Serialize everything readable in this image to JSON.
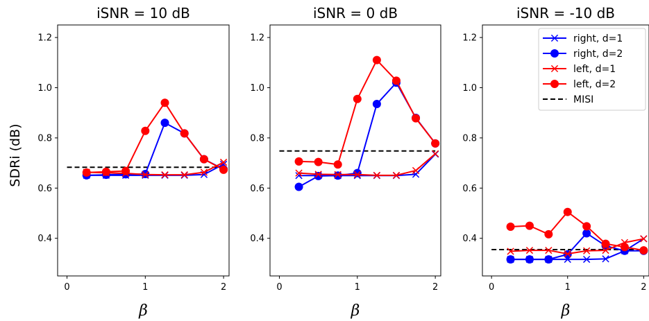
{
  "figure": {
    "ylabel": "SDRi (dB)"
  },
  "chart_data": [
    {
      "type": "line",
      "title": "iSNR = 10 dB",
      "xlabel": "β",
      "ylabel": "SDRi (dB)",
      "xlim": [
        -0.12,
        2.07
      ],
      "ylim": [
        0.25,
        1.25
      ],
      "xticks": [
        0,
        1,
        2
      ],
      "yticks": [
        0.4,
        0.6,
        0.8,
        1.0,
        1.2
      ],
      "ytick_labels": [
        "0.4",
        "0.6",
        "0.8",
        "1.0",
        "1.2"
      ],
      "x": [
        0.25,
        0.5,
        0.75,
        1.0,
        1.25,
        1.5,
        1.75,
        2.0
      ],
      "series": [
        {
          "name": "right, d=1",
          "color": "#0000ff",
          "marker": "x",
          "values": [
            0.651,
            0.651,
            0.651,
            0.651,
            0.651,
            0.651,
            0.654,
            0.695
          ]
        },
        {
          "name": "right, d=2",
          "color": "#0000ff",
          "marker": "o",
          "values": [
            0.651,
            0.653,
            0.655,
            0.656,
            0.86,
            0.818,
            0.715,
            0.675
          ]
        },
        {
          "name": "left, d=1",
          "color": "#ff0000",
          "marker": "x",
          "values": [
            0.663,
            0.661,
            0.659,
            0.654,
            0.653,
            0.653,
            0.663,
            0.703
          ]
        },
        {
          "name": "left, d=2",
          "color": "#ff0000",
          "marker": "o",
          "values": [
            0.662,
            0.665,
            0.668,
            0.828,
            0.94,
            0.818,
            0.715,
            0.673
          ]
        }
      ],
      "baseline": {
        "name": "MISI",
        "value": 0.683,
        "x_range": [
          0.0,
          2.0
        ]
      },
      "legend": null
    },
    {
      "type": "line",
      "title": "iSNR = 0 dB",
      "xlabel": "β",
      "xlim": [
        -0.12,
        2.07
      ],
      "ylim": [
        0.25,
        1.25
      ],
      "xticks": [
        0,
        1,
        2
      ],
      "yticks": [
        0.4,
        0.6,
        0.8,
        1.0,
        1.2
      ],
      "ytick_labels": [
        "0.4",
        "0.6",
        "0.8",
        "1.0",
        "1.2"
      ],
      "x": [
        0.25,
        0.5,
        0.75,
        1.0,
        1.25,
        1.5,
        1.75,
        2.0
      ],
      "series": [
        {
          "name": "right, d=1",
          "color": "#0000ff",
          "marker": "x",
          "values": [
            0.65,
            0.65,
            0.65,
            0.65,
            0.65,
            0.65,
            0.655,
            0.735
          ]
        },
        {
          "name": "right, d=2",
          "color": "#0000ff",
          "marker": "o",
          "values": [
            0.605,
            0.648,
            0.65,
            0.66,
            0.935,
            1.02,
            0.88,
            0.778
          ]
        },
        {
          "name": "left, d=1",
          "color": "#ff0000",
          "marker": "x",
          "values": [
            0.66,
            0.655,
            0.654,
            0.654,
            0.651,
            0.651,
            0.67,
            0.737
          ]
        },
        {
          "name": "left, d=2",
          "color": "#ff0000",
          "marker": "o",
          "values": [
            0.706,
            0.704,
            0.694,
            0.955,
            1.11,
            1.028,
            0.878,
            0.778
          ]
        }
      ],
      "baseline": {
        "name": "MISI",
        "value": 0.748,
        "x_range": [
          0.0,
          2.0
        ]
      },
      "legend": null
    },
    {
      "type": "line",
      "title": "iSNR = -10 dB",
      "xlabel": "β",
      "xlim": [
        -0.12,
        2.07
      ],
      "ylim": [
        0.25,
        1.25
      ],
      "xticks": [
        0,
        1,
        2
      ],
      "yticks": [
        0.4,
        0.6,
        0.8,
        1.0,
        1.2
      ],
      "ytick_labels": [
        "0.4",
        "0.6",
        "0.8",
        "1.0",
        "1.2"
      ],
      "x": [
        0.25,
        0.5,
        0.75,
        1.0,
        1.25,
        1.5,
        1.75,
        2.0
      ],
      "series": [
        {
          "name": "right, d=1",
          "color": "#0000ff",
          "marker": "x",
          "values": [
            0.316,
            0.316,
            0.316,
            0.316,
            0.316,
            0.318,
            0.35,
            0.398
          ]
        },
        {
          "name": "right, d=2",
          "color": "#0000ff",
          "marker": "o",
          "values": [
            0.316,
            0.316,
            0.316,
            0.336,
            0.42,
            0.37,
            0.35,
            0.35
          ]
        },
        {
          "name": "left, d=1",
          "color": "#ff0000",
          "marker": "x",
          "values": [
            0.348,
            0.352,
            0.352,
            0.338,
            0.35,
            0.352,
            0.383,
            0.398
          ]
        },
        {
          "name": "left, d=2",
          "color": "#ff0000",
          "marker": "o",
          "values": [
            0.446,
            0.45,
            0.416,
            0.505,
            0.448,
            0.378,
            0.365,
            0.352
          ]
        }
      ],
      "baseline": {
        "name": "MISI",
        "value": 0.355,
        "x_range": [
          0.0,
          2.0
        ]
      },
      "legend": {
        "placement": "top-right",
        "entries": [
          {
            "label": "right, d=1",
            "color": "#0000ff",
            "marker": "x",
            "line": "solid"
          },
          {
            "label": "right, d=2",
            "color": "#0000ff",
            "marker": "o",
            "line": "solid"
          },
          {
            "label": "left, d=1",
            "color": "#ff0000",
            "marker": "x",
            "line": "solid"
          },
          {
            "label": "left, d=2",
            "color": "#ff0000",
            "marker": "o",
            "line": "solid"
          },
          {
            "label": "MISI",
            "color": "#000000",
            "marker": "none",
            "line": "dashed"
          }
        ]
      }
    }
  ]
}
